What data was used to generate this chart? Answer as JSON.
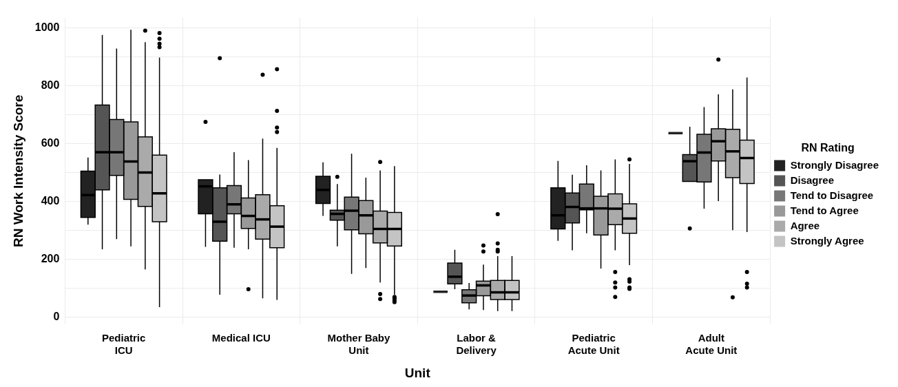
{
  "chart_data": {
    "type": "box",
    "xlabel": "Unit",
    "ylabel": "RN Work Intensity Score",
    "legend_title": "RN Rating",
    "legend": "right",
    "grid": true,
    "categories": [
      "Pediatric\nICU",
      "Medical ICU",
      "Mother Baby\nUnit",
      "Labor &\nDelivery",
      "Pediatric\nAcute Unit",
      "Adult\nAcute Unit"
    ],
    "ylim": [
      -25,
      1035
    ],
    "yticks": [
      0,
      {
        "value": 100,
        "label": null
      },
      200,
      {
        "value": 300,
        "label": null
      },
      400,
      {
        "value": 500,
        "label": null
      },
      600,
      {
        "value": 700,
        "label": null
      },
      800,
      {
        "value": 900,
        "label": null
      },
      1000
    ],
    "series": [
      {
        "name": "Strongly Disagree",
        "color": "#222222",
        "boxes": [
          {
            "low": 320,
            "q1": 345,
            "median": 422,
            "q3": 505,
            "high": 552
          },
          {
            "low": 243,
            "q1": 357,
            "median": 452,
            "q3": 475,
            "high": 475,
            "outliers": [
              675
            ]
          },
          {
            "low": 350,
            "q1": 393,
            "median": 440,
            "q3": 487,
            "high": 535
          },
          {
            "low": 88,
            "q1": 88,
            "median": 88,
            "q3": 88,
            "high": 88
          },
          {
            "low": 264,
            "q1": 305,
            "median": 352,
            "q3": 447,
            "high": 540
          },
          {
            "low": 636,
            "q1": 636,
            "median": 636,
            "q3": 636,
            "high": 636
          }
        ]
      },
      {
        "name": "Disagree",
        "color": "#555555",
        "boxes": [
          {
            "low": 235,
            "q1": 440,
            "median": 570,
            "q3": 733,
            "high": 975
          },
          {
            "low": 78,
            "q1": 263,
            "median": 330,
            "q3": 447,
            "high": 493,
            "outliers": [
              895
            ]
          },
          {
            "low": 245,
            "q1": 335,
            "median": 357,
            "q3": 370,
            "high": 460,
            "outliers": [
              485
            ]
          },
          {
            "low": 97,
            "q1": 115,
            "median": 140,
            "q3": 187,
            "high": 233
          },
          {
            "low": 231,
            "q1": 326,
            "median": 381,
            "q3": 429,
            "high": 492
          },
          {
            "low": 469,
            "q1": 469,
            "median": 539,
            "q3": 562,
            "high": 658,
            "outliers": [
              307
            ]
          }
        ]
      },
      {
        "name": "Tend to Disagree",
        "color": "#777777",
        "boxes": [
          {
            "low": 270,
            "q1": 490,
            "median": 570,
            "q3": 683,
            "high": 928
          },
          {
            "low": 240,
            "q1": 357,
            "median": 390,
            "q3": 455,
            "high": 570
          },
          {
            "low": 150,
            "q1": 302,
            "median": 368,
            "q3": 415,
            "high": 565
          },
          {
            "low": 27,
            "q1": 50,
            "median": 75,
            "q3": 95,
            "high": 118
          },
          {
            "low": 290,
            "q1": 371,
            "median": 376,
            "q3": 460,
            "high": 525
          },
          {
            "low": 375,
            "q1": 467,
            "median": 569,
            "q3": 632,
            "high": 726
          }
        ]
      },
      {
        "name": "Tend to Agree",
        "color": "#999999",
        "boxes": [
          {
            "low": 245,
            "q1": 407,
            "median": 538,
            "q3": 675,
            "high": 993
          },
          {
            "low": 235,
            "q1": 307,
            "median": 350,
            "q3": 412,
            "high": 543,
            "outliers": [
              97
            ]
          },
          {
            "low": 170,
            "q1": 288,
            "median": 352,
            "q3": 403,
            "high": 482
          },
          {
            "low": 25,
            "q1": 74,
            "median": 110,
            "q3": 125,
            "high": 182,
            "outliers": [
              227,
              248
            ]
          },
          {
            "low": 168,
            "q1": 284,
            "median": 376,
            "q3": 418,
            "high": 507
          },
          {
            "low": 401,
            "q1": 540,
            "median": 608,
            "q3": 651,
            "high": 770,
            "outliers": [
              890
            ]
          }
        ]
      },
      {
        "name": "Agree",
        "color": "#aaaaaa",
        "boxes": [
          {
            "low": 165,
            "q1": 383,
            "median": 500,
            "q3": 623,
            "high": 950,
            "outliers": [
              990
            ]
          },
          {
            "low": 65,
            "q1": 270,
            "median": 338,
            "q3": 423,
            "high": 617,
            "outliers": [
              838
            ]
          },
          {
            "low": 120,
            "q1": 257,
            "median": 305,
            "q3": 367,
            "high": 507,
            "outliers": [
              63,
              80,
              536
            ]
          },
          {
            "low": 21,
            "q1": 61,
            "median": 86,
            "q3": 127,
            "high": 211,
            "outliers": [
              227,
              233,
              255,
              356
            ]
          },
          {
            "low": 231,
            "q1": 320,
            "median": 375,
            "q3": 426,
            "high": 545,
            "outliers": [
              70,
              103,
              120,
              156
            ]
          },
          {
            "low": 301,
            "q1": 482,
            "median": 573,
            "q3": 649,
            "high": 787,
            "outliers": [
              69
            ]
          }
        ]
      },
      {
        "name": "Strongly Agree",
        "color": "#c4c4c4",
        "boxes": [
          {
            "low": 35,
            "q1": 330,
            "median": 428,
            "q3": 560,
            "high": 897,
            "outliers": [
              933,
              945,
              962,
              982
            ]
          },
          {
            "low": 60,
            "q1": 240,
            "median": 313,
            "q3": 385,
            "high": 585,
            "outliers": [
              640,
              655,
              713,
              857
            ]
          },
          {
            "low": 78,
            "q1": 246,
            "median": 305,
            "q3": 362,
            "high": 522,
            "outliers": [
              52,
              58,
              65,
              70
            ]
          },
          {
            "low": 21,
            "q1": 61,
            "median": 86,
            "q3": 127,
            "high": 211
          },
          {
            "low": 180,
            "q1": 290,
            "median": 341,
            "q3": 392,
            "high": 530,
            "outliers": [
              98,
              103,
              123,
              131,
              545
            ]
          },
          {
            "low": 294,
            "q1": 462,
            "median": 550,
            "q3": 612,
            "high": 828,
            "outliers": [
              103,
              116,
              156
            ]
          }
        ]
      }
    ]
  }
}
